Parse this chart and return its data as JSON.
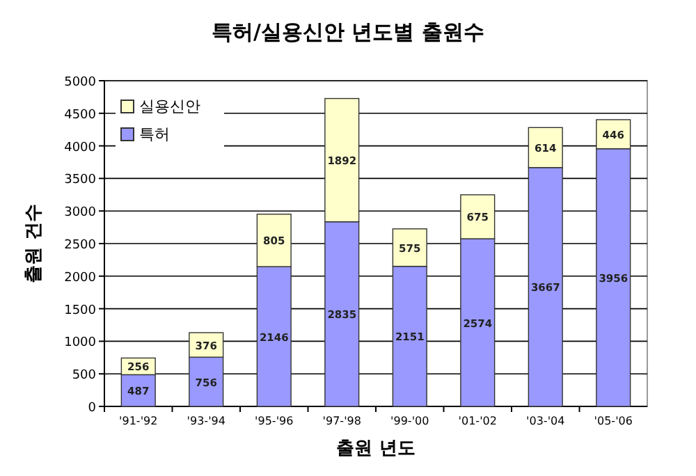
{
  "chart_data": {
    "type": "bar",
    "title": "특허/실용신안 년도별 출원수",
    "xlabel": "출원 년도",
    "ylabel": "출원 건수",
    "categories": [
      "'91-'92",
      "'93-'94",
      "'95-'96",
      "'97-'98",
      "'99-'00",
      "'01-'02",
      "'03-'04",
      "'05-'06"
    ],
    "stacked": true,
    "data_labels": true,
    "grid": "y",
    "legend": "top left",
    "ylim": [
      0,
      5000
    ],
    "yticks": [
      0,
      500,
      1000,
      1500,
      2000,
      2500,
      3000,
      3500,
      4000,
      4500,
      5000
    ],
    "series": [
      {
        "name": "특허",
        "color": "#9999ff",
        "values": [
          487,
          756,
          2146,
          2835,
          2151,
          2574,
          3667,
          3956
        ]
      },
      {
        "name": "실용신안",
        "color": "#ffffcc",
        "values": [
          256,
          376,
          805,
          1892,
          575,
          675,
          614,
          446
        ]
      }
    ]
  }
}
